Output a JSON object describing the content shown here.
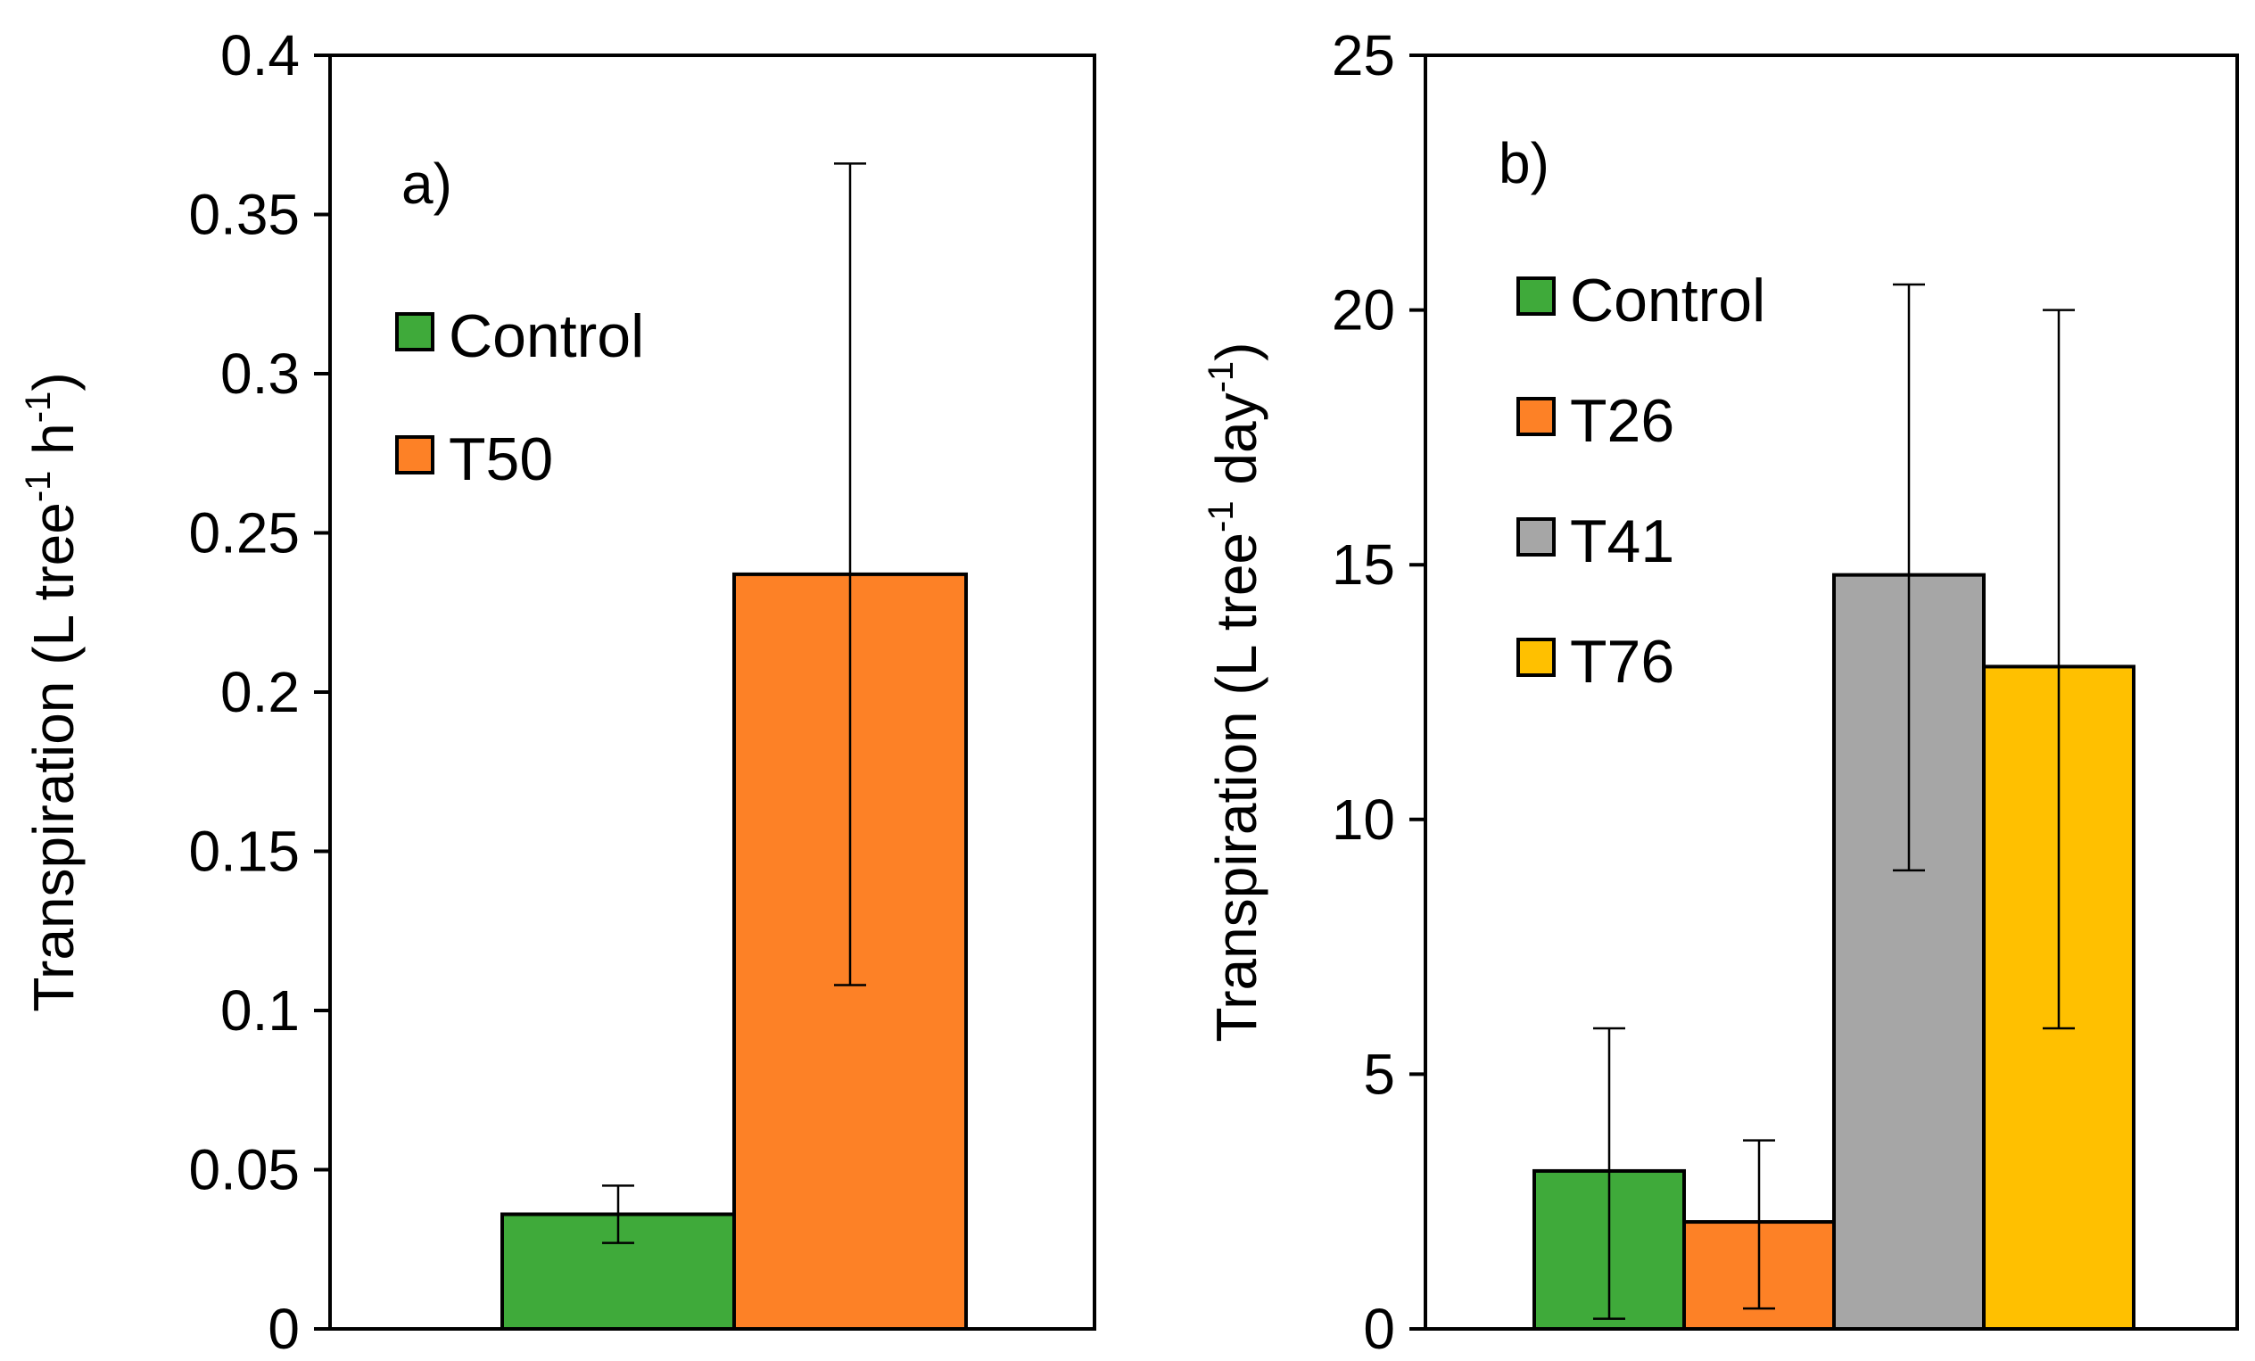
{
  "chart_data": [
    {
      "panel_label": "a)",
      "type": "bar",
      "ylabel": {
        "main": "Transpiration (L tree",
        "sup1": "-1",
        "mid": " h",
        "sup2": "-1",
        "end": ")"
      },
      "ylim": [
        0,
        0.4
      ],
      "yticks": [
        "0",
        "0.05",
        "0.1",
        "0.15",
        "0.2",
        "0.25",
        "0.3",
        "0.35",
        "0.4"
      ],
      "tick_values": [
        0,
        0.05,
        0.1,
        0.15,
        0.2,
        0.25,
        0.3,
        0.35,
        0.4
      ],
      "series": [
        {
          "name": "Control",
          "color": "#3FAA3A",
          "value": 0.036,
          "err_low": 0.027,
          "err_high": 0.045
        },
        {
          "name": "T50",
          "color": "#FD8126",
          "value": 0.237,
          "err_low": 0.108,
          "err_high": 0.366
        }
      ]
    },
    {
      "panel_label": "b)",
      "type": "bar",
      "ylabel": {
        "main": "Transpiration (L tree",
        "sup1": "-1",
        "mid": " day",
        "sup2": "-1",
        "end": ")"
      },
      "ylim": [
        0,
        25
      ],
      "yticks": [
        "0",
        "5",
        "10",
        "15",
        "20",
        "25"
      ],
      "tick_values": [
        0,
        5,
        10,
        15,
        20,
        25
      ],
      "series": [
        {
          "name": "Control",
          "color": "#3FAA3A",
          "value": 3.1,
          "err_low": 0.2,
          "err_high": 5.9
        },
        {
          "name": "T26",
          "color": "#FD8126",
          "value": 2.1,
          "err_low": 0.4,
          "err_high": 3.7
        },
        {
          "name": "T41",
          "color": "#A6A6A6",
          "value": 14.8,
          "err_low": 9.0,
          "err_high": 20.5
        },
        {
          "name": "T76",
          "color": "#FFC000",
          "value": 13.0,
          "err_low": 5.9,
          "err_high": 20.0
        }
      ]
    }
  ]
}
